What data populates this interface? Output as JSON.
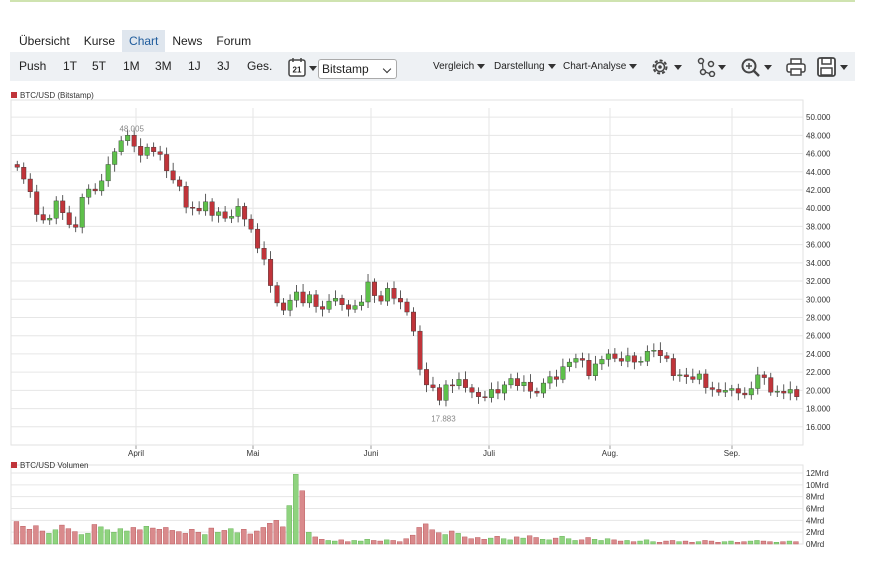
{
  "nav": {
    "tabs": [
      {
        "label": "Übersicht"
      },
      {
        "label": "Kurse"
      },
      {
        "label": "Chart",
        "active": true
      },
      {
        "label": "News"
      },
      {
        "label": "Forum"
      }
    ]
  },
  "toolbar": {
    "periods": [
      "Push",
      "1T",
      "5T",
      "1M",
      "3M",
      "1J",
      "3J",
      "Ges."
    ],
    "calendar_day": "21",
    "exchange": "Bitstamp",
    "menus": [
      "Vergleich",
      "Darstellung",
      "Chart-Analyse"
    ],
    "icons": [
      "settings-icon",
      "indicators-icon",
      "zoom-icon",
      "print-icon",
      "save-icon"
    ]
  },
  "colors": {
    "up": "#5ec04a",
    "down": "#c0343a",
    "grid": "#e6e6e6",
    "tab_active_bg": "#dfe6ee",
    "toolbar_bg": "#eef1f4"
  },
  "chart_data": {
    "type": "candlestick",
    "price_panel": {
      "legend": "BTC/USD (Bitstamp)",
      "y_ticks": [
        "16.000",
        "18.000",
        "20.000",
        "22.000",
        "24.000",
        "26.000",
        "28.000",
        "30.000",
        "32.000",
        "34.000",
        "36.000",
        "38.000",
        "40.000",
        "42.000",
        "44.000",
        "46.000",
        "48.000",
        "50.000"
      ],
      "ylim": [
        14000,
        51000
      ],
      "x_ticks": [
        "April",
        "Mai",
        "Juni",
        "Juli",
        "Aug.",
        "Sep."
      ],
      "annotations": [
        {
          "text": "48.005",
          "value": 48005
        },
        {
          "text": "17.883",
          "value": 17883
        }
      ],
      "closes": [
        44500,
        43200,
        41800,
        39300,
        38700,
        38900,
        40800,
        39500,
        38200,
        37900,
        41200,
        42100,
        41900,
        43000,
        44800,
        46200,
        47400,
        48005,
        46800,
        45800,
        46700,
        46200,
        45900,
        44100,
        43100,
        42400,
        40100,
        40000,
        39700,
        40700,
        39200,
        39600,
        38900,
        39100,
        40200,
        38800,
        37700,
        35600,
        34400,
        31500,
        29600,
        28800,
        29900,
        30800,
        29600,
        30500,
        29200,
        28900,
        29800,
        30100,
        29400,
        28900,
        29300,
        29700,
        31900,
        30400,
        29800,
        31200,
        30100,
        29700,
        28600,
        26500,
        22300,
        20600,
        20300,
        18900,
        20600,
        20500,
        21200,
        20300,
        19800,
        19300,
        19200,
        20100,
        19700,
        20600,
        21300,
        20500,
        20900,
        19900,
        19700,
        20800,
        21500,
        21200,
        22600,
        23100,
        23500,
        23300,
        21600,
        22900,
        23400,
        24000,
        23500,
        23200,
        23800,
        23100,
        23200,
        24300,
        24400,
        23800,
        23500,
        21600,
        21700,
        21500,
        21200,
        21800,
        20300,
        20100,
        19800,
        20000,
        20200,
        19700,
        19500,
        20200,
        21700,
        21400,
        19800,
        19900,
        19700,
        20100,
        19300
      ],
      "highlight_indices": [
        17,
        65
      ]
    },
    "volume_panel": {
      "legend": "BTC/USD Volumen",
      "y_ticks": [
        "0Mrd",
        "2Mrd",
        "4Mrd",
        "6Mrd",
        "8Mrd",
        "10Mrd",
        "12Mrd"
      ],
      "ylim": [
        0,
        12
      ],
      "values": [
        3.8,
        3.0,
        2.5,
        3.1,
        2.2,
        1.8,
        2.4,
        3.2,
        2.6,
        2.1,
        1.6,
        1.8,
        3.3,
        2.9,
        2.4,
        2.0,
        2.6,
        2.2,
        2.8,
        2.4,
        3.0,
        2.7,
        2.5,
        2.8,
        2.3,
        2.1,
        1.8,
        2.5,
        2.0,
        1.6,
        2.7,
        2.0,
        2.3,
        2.6,
        1.9,
        2.5,
        1.7,
        2.2,
        2.8,
        3.5,
        4.0,
        2.9,
        6.5,
        11.8,
        9.0,
        2.0,
        1.2,
        0.8,
        0.6,
        0.5,
        0.7,
        0.4,
        0.6,
        0.5,
        0.8,
        0.6,
        0.5,
        0.7,
        0.6,
        0.4,
        0.9,
        1.5,
        2.8,
        3.4,
        2.4,
        1.9,
        1.6,
        2.2,
        1.8,
        1.2,
        0.9,
        1.1,
        0.8,
        1.0,
        1.3,
        0.9,
        0.7,
        1.2,
        1.0,
        1.4,
        1.1,
        0.8,
        0.7,
        1.0,
        1.3,
        0.9,
        0.6,
        0.7,
        1.1,
        0.8,
        0.6,
        0.9,
        0.7,
        0.5,
        0.6,
        0.4,
        0.5,
        0.7,
        0.4,
        0.3,
        0.5,
        0.6,
        0.4,
        0.5,
        0.3,
        0.4,
        0.6,
        0.5,
        0.3,
        0.4,
        0.5,
        0.3,
        0.4,
        0.5,
        0.6,
        0.5,
        0.4,
        0.3,
        0.4,
        0.5,
        0.4
      ]
    },
    "grid": true
  }
}
